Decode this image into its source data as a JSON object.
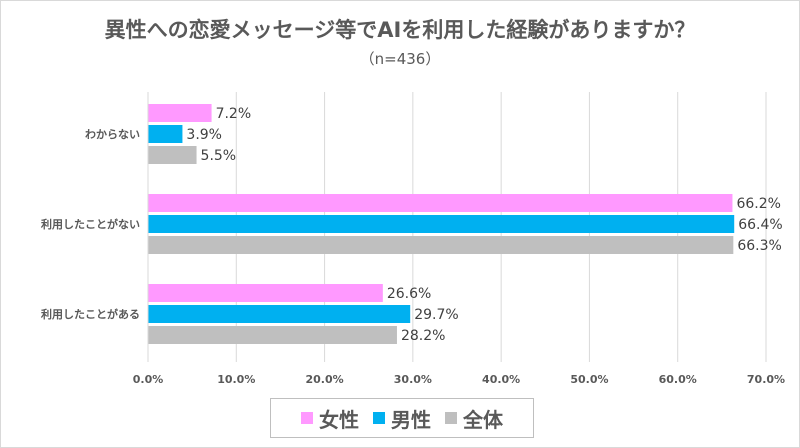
{
  "chart_data": {
    "type": "bar",
    "orientation": "horizontal",
    "title": "異性への恋愛メッセージ等でAIを利用した経験がありますか？",
    "subtitle": "（n=436）",
    "categories": [
      "わからない",
      "利用したことがない",
      "利用したことがある"
    ],
    "series": [
      {
        "name": "女性",
        "color": "#FF99FF",
        "values": [
          7.2,
          66.2,
          26.6
        ]
      },
      {
        "name": "男性",
        "color": "#00B0F0",
        "values": [
          3.9,
          66.4,
          29.7
        ]
      },
      {
        "name": "全体",
        "color": "#BFBFBF",
        "values": [
          5.5,
          66.3,
          28.2
        ]
      }
    ],
    "xlim": [
      0,
      70
    ],
    "xticks": [
      "0.0%",
      "10.0%",
      "20.0%",
      "30.0%",
      "40.0%",
      "50.0%",
      "60.0%",
      "70.0%"
    ],
    "value_format": "percent_1dp",
    "grid": "vertical",
    "legend": "bottom"
  }
}
